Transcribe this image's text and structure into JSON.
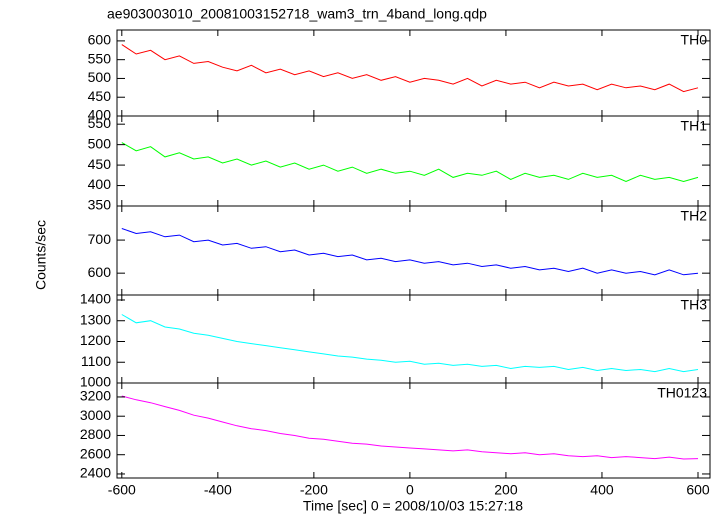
{
  "title": "ae903003010_20081003152718_wam3_trn_4band_long.qdp",
  "xlabel": "Time [sec] 0 = 2008/10/03 15:27:18",
  "ylabel": "Counts/sec",
  "chart_data": [
    {
      "type": "line",
      "xlim": [
        -610,
        625
      ],
      "xticks": [
        -600,
        -400,
        -200,
        0,
        200,
        400,
        600
      ],
      "ylim": [
        400,
        629
      ],
      "yticks": [
        400,
        450,
        500,
        550,
        600
      ],
      "x": [
        -600,
        -570,
        -540,
        -510,
        -480,
        -450,
        -420,
        -390,
        -360,
        -330,
        -300,
        -270,
        -240,
        -210,
        -180,
        -150,
        -120,
        -90,
        -60,
        -30,
        0,
        30,
        60,
        90,
        120,
        150,
        180,
        210,
        240,
        270,
        300,
        330,
        360,
        390,
        420,
        450,
        480,
        510,
        540,
        570,
        600
      ],
      "series": [
        {
          "name": "TH0",
          "color": "#ff0000",
          "values": [
            590,
            565,
            575,
            550,
            560,
            540,
            545,
            530,
            520,
            535,
            515,
            525,
            510,
            520,
            505,
            515,
            500,
            510,
            495,
            505,
            490,
            500,
            495,
            485,
            500,
            480,
            495,
            485,
            490,
            475,
            490,
            480,
            485,
            470,
            485,
            475,
            480,
            470,
            485,
            465,
            475
          ]
        }
      ]
    },
    {
      "type": "line",
      "xlim": [
        -610,
        625
      ],
      "xticks": [
        -600,
        -400,
        -200,
        0,
        200,
        400,
        600
      ],
      "ylim": [
        350,
        570
      ],
      "yticks": [
        350,
        400,
        450,
        500,
        550
      ],
      "x": [
        -600,
        -570,
        -540,
        -510,
        -480,
        -450,
        -420,
        -390,
        -360,
        -330,
        -300,
        -270,
        -240,
        -210,
        -180,
        -150,
        -120,
        -90,
        -60,
        -30,
        0,
        30,
        60,
        90,
        120,
        150,
        180,
        210,
        240,
        270,
        300,
        330,
        360,
        390,
        420,
        450,
        480,
        510,
        540,
        570,
        600
      ],
      "series": [
        {
          "name": "TH1",
          "color": "#00ff00",
          "values": [
            505,
            485,
            495,
            470,
            480,
            465,
            470,
            455,
            465,
            450,
            460,
            445,
            455,
            440,
            450,
            435,
            445,
            430,
            440,
            430,
            435,
            425,
            440,
            420,
            430,
            425,
            435,
            415,
            430,
            420,
            425,
            415,
            430,
            420,
            425,
            410,
            425,
            415,
            420,
            410,
            420
          ]
        }
      ]
    },
    {
      "type": "line",
      "xlim": [
        -610,
        625
      ],
      "xticks": [
        -600,
        -400,
        -200,
        0,
        200,
        400,
        600
      ],
      "ylim": [
        534,
        803
      ],
      "yticks": [
        600,
        700
      ],
      "x": [
        -600,
        -570,
        -540,
        -510,
        -480,
        -450,
        -420,
        -390,
        -360,
        -330,
        -300,
        -270,
        -240,
        -210,
        -180,
        -150,
        -120,
        -90,
        -60,
        -30,
        0,
        30,
        60,
        90,
        120,
        150,
        180,
        210,
        240,
        270,
        300,
        330,
        360,
        390,
        420,
        450,
        480,
        510,
        540,
        570,
        600
      ],
      "series": [
        {
          "name": "TH2",
          "color": "#0000ff",
          "values": [
            735,
            720,
            725,
            710,
            715,
            695,
            700,
            685,
            690,
            675,
            680,
            665,
            670,
            655,
            660,
            650,
            655,
            640,
            645,
            635,
            640,
            630,
            635,
            625,
            630,
            620,
            625,
            615,
            620,
            610,
            615,
            605,
            615,
            600,
            610,
            600,
            605,
            595,
            610,
            595,
            600
          ]
        }
      ]
    },
    {
      "type": "line",
      "xlim": [
        -610,
        625
      ],
      "xticks": [
        -600,
        -400,
        -200,
        0,
        200,
        400,
        600
      ],
      "ylim": [
        1000,
        1424
      ],
      "yticks": [
        1000,
        1100,
        1200,
        1300,
        1400
      ],
      "x": [
        -600,
        -570,
        -540,
        -510,
        -480,
        -450,
        -420,
        -390,
        -360,
        -330,
        -300,
        -270,
        -240,
        -210,
        -180,
        -150,
        -120,
        -90,
        -60,
        -30,
        0,
        30,
        60,
        90,
        120,
        150,
        180,
        210,
        240,
        270,
        300,
        330,
        360,
        390,
        420,
        450,
        480,
        510,
        540,
        570,
        600
      ],
      "series": [
        {
          "name": "TH3",
          "color": "#00ffff",
          "values": [
            1330,
            1290,
            1300,
            1270,
            1260,
            1240,
            1230,
            1215,
            1200,
            1190,
            1180,
            1170,
            1160,
            1150,
            1140,
            1130,
            1125,
            1115,
            1110,
            1100,
            1105,
            1090,
            1095,
            1085,
            1090,
            1080,
            1085,
            1070,
            1080,
            1075,
            1080,
            1065,
            1075,
            1060,
            1070,
            1060,
            1065,
            1055,
            1070,
            1055,
            1065
          ]
        }
      ]
    },
    {
      "type": "line",
      "xlim": [
        -610,
        625
      ],
      "xticks": [
        -600,
        -400,
        -200,
        0,
        200,
        400,
        600
      ],
      "ylim": [
        2358,
        3345
      ],
      "yticks": [
        2400,
        2600,
        2800,
        3000,
        3200
      ],
      "x": [
        -600,
        -570,
        -540,
        -510,
        -480,
        -450,
        -420,
        -390,
        -360,
        -330,
        -300,
        -270,
        -240,
        -210,
        -180,
        -150,
        -120,
        -90,
        -60,
        -30,
        0,
        30,
        60,
        90,
        120,
        150,
        180,
        210,
        240,
        270,
        300,
        330,
        360,
        390,
        420,
        450,
        480,
        510,
        540,
        570,
        600
      ],
      "series": [
        {
          "name": "TH0123",
          "color": "#ff00ff",
          "values": [
            3210,
            3170,
            3140,
            3100,
            3060,
            3010,
            2980,
            2940,
            2900,
            2870,
            2850,
            2820,
            2800,
            2770,
            2760,
            2740,
            2720,
            2710,
            2690,
            2680,
            2670,
            2660,
            2650,
            2640,
            2650,
            2630,
            2620,
            2610,
            2620,
            2600,
            2610,
            2590,
            2580,
            2590,
            2570,
            2580,
            2570,
            2560,
            2575,
            2555,
            2560
          ]
        }
      ]
    }
  ]
}
